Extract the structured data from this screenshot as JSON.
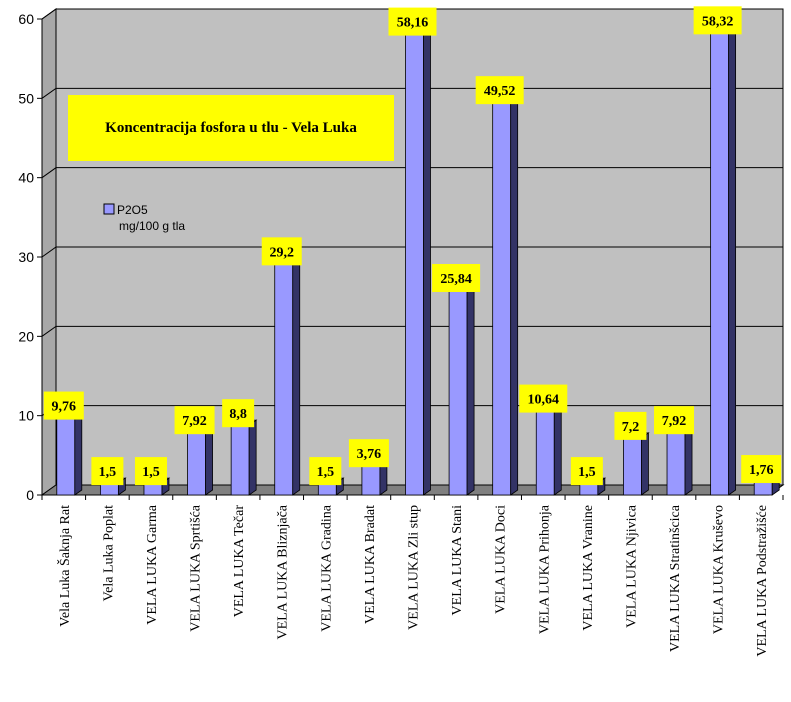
{
  "chart_data": {
    "type": "bar",
    "title": "Koncentracija fosfora u tlu - Vela Luka",
    "ylim": [
      0,
      60
    ],
    "yticks": [
      0,
      10,
      20,
      30,
      40,
      50,
      60
    ],
    "grid": "horizontal",
    "legend_placement": "upper-left",
    "series": [
      {
        "name": "P2O5\nmg/100 g tla",
        "legend_line1": "P2O5",
        "legend_line2": "mg/100 g tla",
        "color": "#9999FF",
        "values": [
          9.76,
          1.5,
          1.5,
          7.92,
          8.8,
          29.2,
          1.5,
          3.76,
          58.16,
          25.84,
          49.52,
          10.64,
          1.5,
          7.2,
          7.92,
          58.32,
          1.76
        ],
        "labels": [
          "9,76",
          "1,5",
          "1,5",
          "7,92",
          "8,8",
          "29,2",
          "1,5",
          "3,76",
          "58,16",
          "25,84",
          "49,52",
          "10,64",
          "1,5",
          "7,2",
          "7,92",
          "58,32",
          "1,76"
        ]
      }
    ],
    "categories": [
      "Vela Luka Šaknja Rat",
      "Vela Luka Poplat",
      "VELA LUKA Garma",
      "VELA LUKA Sprtišća",
      "VELA LUKA Tečar",
      "VELA LUKA Bliznjača",
      "VELA LUKA Gradina",
      "VELA LUKA Bradat",
      "VELA LUKA Zli stup",
      "VELA LUKA Stani",
      "VELA LUKA Doci",
      "VELA LUKA Prihonja",
      "VELA LUKA Vranine",
      "VELA LUKA Njivica",
      "VELA LUKA Stratinšcica",
      "VELA LUKA Kruševo",
      "VELA LUKA  Podstražišće"
    ],
    "colors": {
      "plot_background": "#C0C0C0",
      "bar_front": "#9999FF",
      "bar_side": "#333366",
      "bar_top": "#CCCCFF",
      "label_background": "#FFFF00",
      "title_background": "#FFFF00"
    }
  }
}
